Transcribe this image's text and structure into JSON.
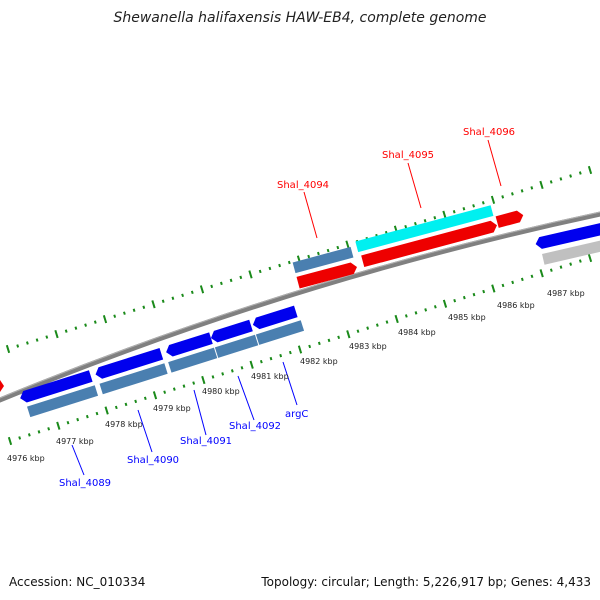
{
  "title": "Shewanella halifaxensis HAW-EB4, complete genome",
  "accession": "Accession: NC_010334",
  "summary": "Topology: circular; Length: 5,226,917 bp; Genes: 4,433",
  "kbp_labels": [
    "4976 kbp",
    "4977 kbp",
    "4978 kbp",
    "4979 kbp",
    "4980 kbp",
    "4981 kbp",
    "4982 kbp",
    "4983 kbp",
    "4984 kbp",
    "4985 kbp",
    "4986 kbp",
    "4987 kbp"
  ],
  "genes_reverse": [
    "Shal_4089",
    "Shal_4090",
    "Shal_4091",
    "Shal_4092",
    "argC"
  ],
  "genes_forward": [
    "Shal_4094",
    "Shal_4095",
    "Shal_4096"
  ],
  "colors": {
    "reverse_label": "#0000ff",
    "forward_label": "#ff0000",
    "cds_blue": "#0000ee",
    "cds_steel": "#4a7fb0",
    "cds_red": "#ee0000",
    "cds_cyan": "#00f0f0",
    "cds_gray": "#c0c0c0",
    "tick": "#1a8a1a",
    "backbone": "#808080"
  }
}
